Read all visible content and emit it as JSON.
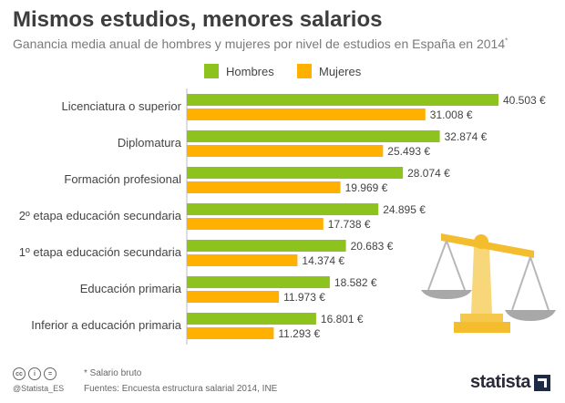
{
  "header": {
    "title": "Mismos estudios, menores salarios",
    "subtitle": "Ganancia media anual de hombres y mujeres por nivel de estudios en España en 2014",
    "subtitle_mark": "*"
  },
  "chart_data": {
    "type": "bar",
    "orientation": "horizontal",
    "categories": [
      "Licenciatura o superior",
      "Diplomatura",
      "Formación profesional",
      "2º etapa educación secundaria",
      "1º etapa educación secundaria",
      "Educación primaria",
      "Inferior a educación primaria"
    ],
    "series": [
      {
        "name": "Hombres",
        "color": "#8dc21f",
        "values": [
          40503,
          32874,
          28074,
          24895,
          20683,
          18582,
          16801
        ],
        "labels": [
          "40.503 €",
          "32.874 €",
          "28.074 €",
          "24.895 €",
          "20.683 €",
          "18.582 €",
          "16.801 €"
        ]
      },
      {
        "name": "Mujeres",
        "color": "#ffb000",
        "values": [
          31008,
          25493,
          19969,
          17738,
          14374,
          11973,
          11293
        ],
        "labels": [
          "31.008 €",
          "25.493 €",
          "19.969 €",
          "17.738 €",
          "14.374 €",
          "11.973 €",
          "11.293 €"
        ]
      }
    ],
    "legend_position": "top",
    "grid": false
  },
  "footer": {
    "handle": "@Statista_ES",
    "footnote": "* Salario bruto",
    "sources": "Fuentes: Encuesta estructura salarial 2014,  INE",
    "logo": "statista",
    "cc_icons": [
      "cc-icon",
      "by-icon",
      "nd-icon"
    ]
  }
}
